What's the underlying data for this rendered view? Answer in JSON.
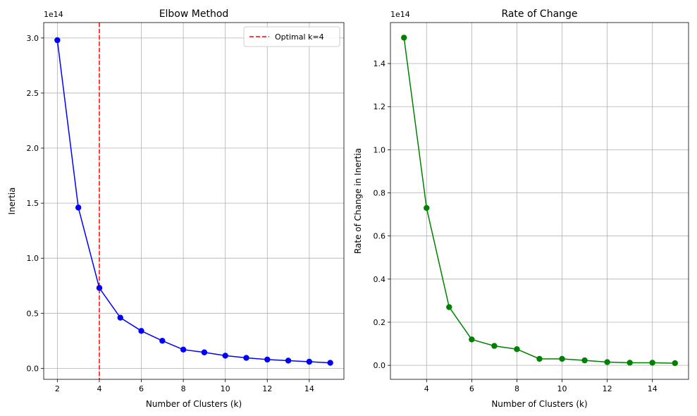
{
  "chart_data": [
    {
      "type": "line",
      "title": "Elbow Method",
      "xlabel": "Number of Clusters (k)",
      "ylabel": "Inertia",
      "offset_label": "1e14",
      "xlim": [
        1.35,
        15.65
      ],
      "ylim": [
        -0.1,
        3.14
      ],
      "xticks": [
        2,
        4,
        6,
        8,
        10,
        12,
        14
      ],
      "xtick_labels": [
        "2",
        "4",
        "6",
        "8",
        "10",
        "12",
        "14"
      ],
      "yticks": [
        0.0,
        0.5,
        1.0,
        1.5,
        2.0,
        2.5,
        3.0
      ],
      "ytick_labels": [
        "0.0",
        "0.5",
        "1.0",
        "1.5",
        "2.0",
        "2.5",
        "3.0"
      ],
      "grid": true,
      "series": [
        {
          "color": "#0000ff",
          "marker": "circle",
          "x": [
            2,
            3,
            4,
            5,
            6,
            7,
            8,
            9,
            10,
            11,
            12,
            13,
            14,
            15
          ],
          "y": [
            2.98,
            1.46,
            0.73,
            0.46,
            0.34,
            0.25,
            0.17,
            0.145,
            0.115,
            0.095,
            0.08,
            0.07,
            0.06,
            0.05
          ]
        }
      ],
      "vline": {
        "x": 4,
        "color": "#ff0000",
        "style": "dashed",
        "label": "Optimal k=4"
      },
      "legend": "top-right"
    },
    {
      "type": "line",
      "title": "Rate of Change",
      "xlabel": "Number of Clusters (k)",
      "ylabel": "Rate of Change in Inertia",
      "offset_label": "1e14",
      "xlim": [
        2.4,
        15.6
      ],
      "ylim": [
        -0.065,
        1.59
      ],
      "xticks": [
        4,
        6,
        8,
        10,
        12,
        14
      ],
      "xtick_labels": [
        "4",
        "6",
        "8",
        "10",
        "12",
        "14"
      ],
      "yticks": [
        0.0,
        0.2,
        0.4,
        0.6,
        0.8,
        1.0,
        1.2,
        1.4
      ],
      "ytick_labels": [
        "0.0",
        "0.2",
        "0.4",
        "0.6",
        "0.8",
        "1.0",
        "1.2",
        "1.4"
      ],
      "grid": true,
      "series": [
        {
          "color": "#008000",
          "marker": "circle",
          "x": [
            3,
            4,
            5,
            6,
            7,
            8,
            9,
            10,
            11,
            12,
            13,
            14,
            15
          ],
          "y": [
            1.52,
            0.73,
            0.27,
            0.12,
            0.09,
            0.075,
            0.03,
            0.03,
            0.023,
            0.015,
            0.012,
            0.012,
            0.01
          ]
        }
      ]
    }
  ]
}
